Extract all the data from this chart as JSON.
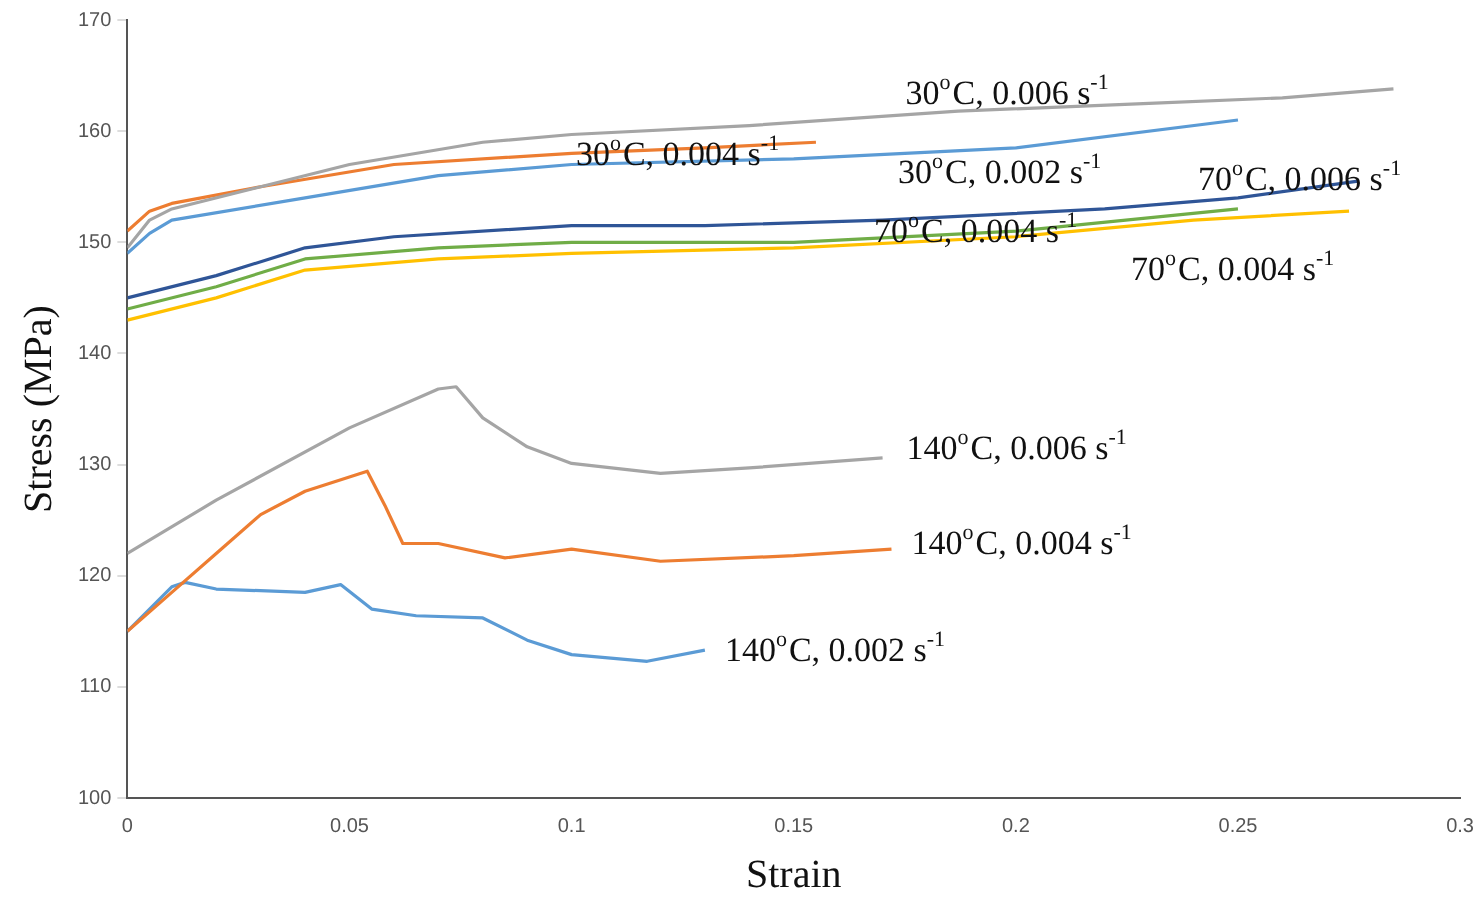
{
  "chart_data": {
    "type": "line",
    "xlabel": "Strain",
    "ylabel": "Stress (MPa)",
    "xlim": [
      0,
      0.3
    ],
    "xticks": [
      0,
      0.05,
      0.1,
      0.15,
      0.2,
      0.25,
      0.3
    ],
    "ylim": [
      100,
      170
    ],
    "yticks": [
      100,
      110,
      120,
      130,
      140,
      150,
      160,
      170
    ],
    "grid": false,
    "legend": false,
    "marker": "none",
    "line_style": "solid",
    "series": [
      {
        "name": "30$^{o}$C, 0.006 s$^{-1}$",
        "color": "#a5a5a5",
        "x": [
          0,
          0.005,
          0.01,
          0.03,
          0.05,
          0.08,
          0.1,
          0.14,
          0.187,
          0.23,
          0.26,
          0.285
        ],
        "values": [
          149.5,
          152,
          153,
          155,
          157,
          159,
          159.7,
          160.5,
          161.8,
          162.5,
          163,
          163.8
        ]
      },
      {
        "name": "30$^{o}$C, 0.004 s$^{-1}$",
        "color": "#ed7d31",
        "x": [
          0,
          0.005,
          0.01,
          0.03,
          0.06,
          0.1,
          0.13,
          0.155
        ],
        "values": [
          151,
          152.8,
          153.5,
          155,
          157,
          158,
          158.5,
          159
        ]
      },
      {
        "name": "30$^{o}$C, 0.002 s$^{-1}$",
        "color": "#5b9bd5",
        "x": [
          0,
          0.005,
          0.01,
          0.04,
          0.07,
          0.1,
          0.15,
          0.2,
          0.25
        ],
        "values": [
          149,
          150.8,
          152,
          154,
          156,
          157,
          157.5,
          158.5,
          161
        ]
      },
      {
        "name": "70$^{o}$C, 0.006 s$^{-1}$",
        "color": "#2f5597",
        "x": [
          0,
          0.02,
          0.04,
          0.06,
          0.1,
          0.13,
          0.17,
          0.22,
          0.25,
          0.277
        ],
        "values": [
          145,
          147,
          149.5,
          150.5,
          151.5,
          151.5,
          152,
          153,
          154,
          155.5
        ]
      },
      {
        "name": "70$^{o}$C, 0.004 s$^{-1}$",
        "color": "#70ad47",
        "x": [
          0,
          0.02,
          0.04,
          0.07,
          0.1,
          0.15,
          0.2,
          0.25
        ],
        "values": [
          144,
          146,
          148.5,
          149.5,
          150,
          150,
          151,
          153
        ]
      },
      {
        "name": "70$^{o}$C, 0.004 s$^{-1}$",
        "color": "#ffc000",
        "x": [
          0,
          0.02,
          0.04,
          0.07,
          0.1,
          0.15,
          0.2,
          0.24,
          0.275
        ],
        "values": [
          143,
          145,
          147.5,
          148.5,
          149,
          149.5,
          150.5,
          152,
          152.8
        ]
      },
      {
        "name": "140$^{o}$C, 0.006 s$^{-1}$",
        "color": "#a5a5a5",
        "x": [
          0,
          0.02,
          0.05,
          0.07,
          0.074,
          0.08,
          0.09,
          0.1,
          0.12,
          0.14,
          0.17
        ],
        "values": [
          122,
          126.8,
          133.3,
          136.8,
          137,
          134.2,
          131.6,
          130.1,
          129.2,
          129.7,
          130.6
        ]
      },
      {
        "name": "140$^{o}$C, 0.004 s$^{-1}$",
        "color": "#ed7d31",
        "x": [
          0,
          0.01,
          0.02,
          0.03,
          0.04,
          0.054,
          0.058,
          0.062,
          0.07,
          0.085,
          0.1,
          0.12,
          0.15,
          0.172
        ],
        "values": [
          115,
          118.5,
          122,
          125.5,
          127.6,
          129.4,
          126.3,
          122.9,
          122.9,
          121.6,
          122.4,
          121.3,
          121.8,
          122.4
        ]
      },
      {
        "name": "140$^{o}$C, 0.002 s$^{-1}$",
        "color": "#5b9bd5",
        "x": [
          0,
          0.01,
          0.013,
          0.02,
          0.04,
          0.048,
          0.055,
          0.065,
          0.08,
          0.09,
          0.1,
          0.117,
          0.13
        ],
        "values": [
          115,
          119,
          119.4,
          118.8,
          118.5,
          119.2,
          117,
          116.4,
          116.2,
          114.2,
          112.9,
          112.3,
          113.3
        ]
      }
    ]
  }
}
